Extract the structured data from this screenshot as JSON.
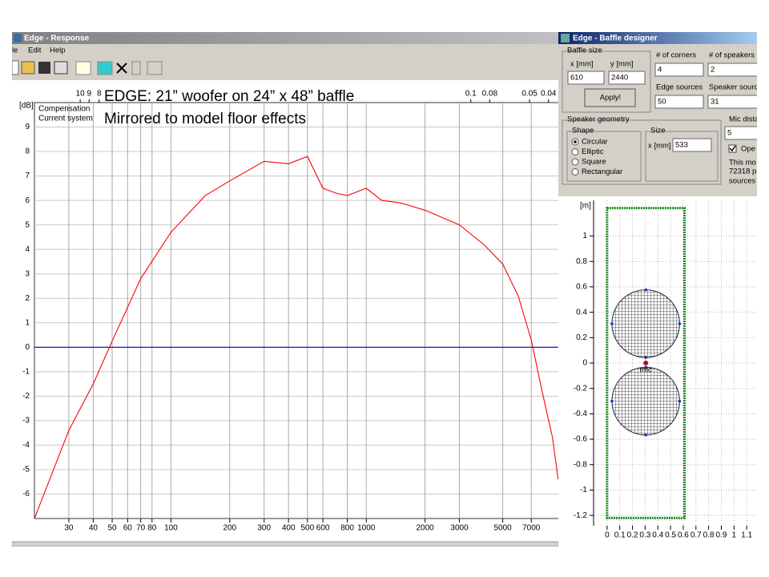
{
  "response_window": {
    "title": "Edge - Response",
    "menu": [
      "le",
      "Edit",
      "Help"
    ]
  },
  "annotation": [
    "EDGE: 21” woofer on 24” x 48” baffle",
    "Mirrored to model floor effects"
  ],
  "baffle_window": {
    "title": "Edge - Baffle designer",
    "baffle_size": "Baffle size",
    "x_label": "x [mm]",
    "y_label": "y [mm]",
    "x_value": 610,
    "y_value": 2440,
    "apply": "Apply!",
    "corners_label": "# of corners",
    "corners_value": 4,
    "speakers_label": "# of speakers",
    "speakers_value": 2,
    "edge_sources_label": "Edge sources",
    "edge_sources_value": 50,
    "speaker_sources_label": "Speaker sourc",
    "speaker_sources_value": 31,
    "geometry_label": "Speaker geometry",
    "shape_label": "Shape",
    "shapes": [
      "Circular",
      "Elliptic",
      "Square",
      "Rectangular"
    ],
    "size_label": "Size",
    "size_x_label": "x [mm]",
    "size_value": 533,
    "mic_label": "Mic dista",
    "mic_value": 5,
    "open_label": "Ope",
    "info": [
      "This mo",
      "72318 p",
      "sources"
    ]
  },
  "chart_data": [
    {
      "type": "line",
      "y_label": "[dB]",
      "xscale": "log",
      "x": [
        20,
        30,
        40,
        50,
        70,
        100,
        150,
        200,
        300,
        400,
        500,
        600,
        700,
        800,
        1000,
        1200,
        1500,
        2000,
        3000,
        4000,
        5000,
        6000,
        7000,
        8000,
        9000,
        9600
      ],
      "series": [
        {
          "name": "Compensation",
          "color": "#0000cc",
          "values": [
            0,
            0,
            0,
            0,
            0,
            0,
            0,
            0,
            0,
            0,
            0,
            0,
            0,
            0,
            0,
            0,
            0,
            0,
            0,
            0,
            0,
            0,
            0,
            0,
            0,
            0
          ]
        },
        {
          "name": "Current system",
          "color": "#ff0000",
          "values": [
            -7.0,
            -3.4,
            -1.5,
            0.25,
            2.8,
            4.7,
            6.2,
            6.8,
            7.6,
            7.5,
            7.8,
            6.5,
            6.3,
            6.2,
            6.5,
            6.0,
            5.9,
            5.6,
            5.0,
            4.2,
            3.4,
            2.1,
            0.3,
            -1.9,
            -3.7,
            -5.4
          ]
        }
      ],
      "xlim": [
        20,
        10000
      ],
      "ylim": [
        -7,
        10
      ],
      "xticks": [
        30,
        40,
        50,
        60,
        70,
        80,
        100,
        200,
        300,
        400,
        500,
        600,
        800,
        1000,
        2000,
        3000,
        5000,
        7000
      ],
      "x2ticks": [
        10,
        9,
        8,
        0.1,
        0.08,
        0.05,
        0.04
      ],
      "yticks": [
        -6,
        -5,
        -4,
        -3,
        -2,
        -1,
        0,
        1,
        2,
        3,
        4,
        5,
        6,
        7,
        8,
        9
      ],
      "grid": true
    },
    {
      "type": "baffle",
      "y_label": "[m]",
      "xlim": [
        -0.1,
        1.2
      ],
      "ylim": [
        -1.3,
        1.3
      ],
      "xticks": [
        0,
        0.1,
        0.2,
        0.3,
        0.4,
        0.5,
        0.6,
        0.7,
        0.8,
        0.9,
        1,
        1.1
      ],
      "yticks": [
        -1.2,
        -1,
        -0.8,
        -0.6,
        -0.4,
        -0.2,
        0,
        0.2,
        0.4,
        0.6,
        0.8,
        1
      ],
      "baffle_x": [
        0,
        0.61
      ],
      "baffle_y": [
        -1.22,
        1.22
      ],
      "speakers": {
        "x": [
          0.305,
          0.305
        ],
        "y": [
          0.31,
          -0.3
        ],
        "diameter": [
          0.533,
          0.533
        ]
      },
      "mic": {
        "x": 0.305,
        "y": 0,
        "label": "mic"
      },
      "grid": true
    }
  ]
}
